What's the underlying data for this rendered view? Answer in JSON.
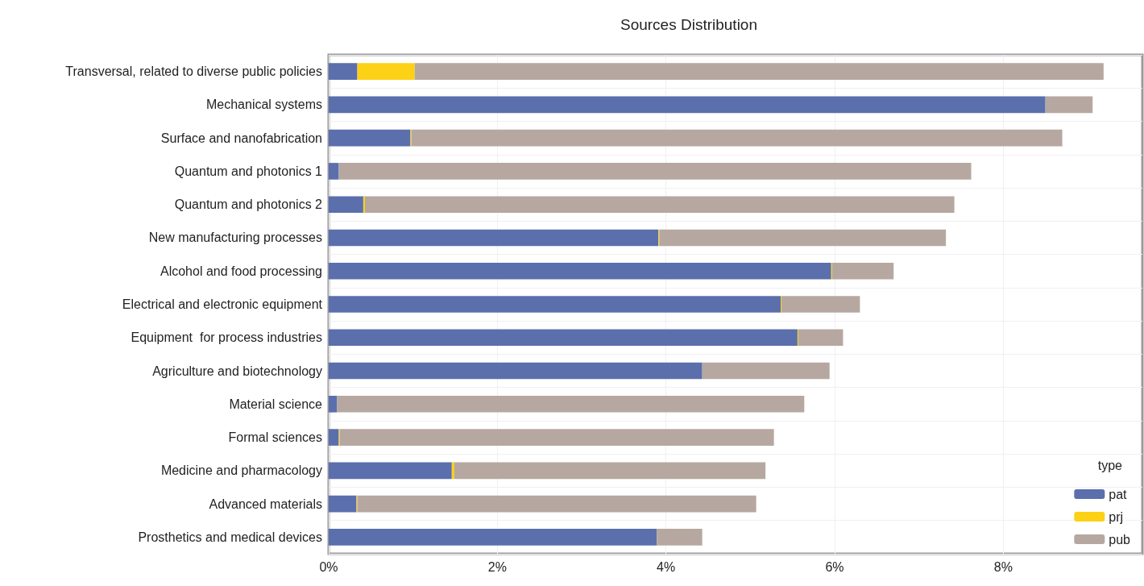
{
  "chart_data": {
    "type": "bar",
    "orientation": "horizontal",
    "stacked": true,
    "title": "Sources Distribution",
    "legend_title": "type",
    "legend": "bottom right",
    "grid": true,
    "categories": [
      "Transversal, related to diverse public policies",
      "Mechanical systems",
      "Surface and nanofabrication",
      "Quantum and photonics 1",
      "Quantum and photonics 2",
      "New manufacturing processes",
      "Alcohol and food processing",
      "Electrical and electronic equipment",
      "Equipment  for process industries",
      "Agriculture and biotechnology",
      "Material science",
      "Formal sciences",
      "Medicine and pharmacology",
      "Advanced materials",
      "Prosthetics and medical devices"
    ],
    "series": [
      {
        "name": "pat",
        "color": "#5b6fad",
        "values": [
          0.34,
          8.5,
          0.97,
          0.12,
          0.41,
          3.91,
          5.96,
          5.36,
          5.56,
          4.43,
          0.1,
          0.12,
          1.46,
          0.33,
          3.89
        ]
      },
      {
        "name": "prj",
        "color": "#fcd116",
        "values": [
          0.68,
          0,
          0.01,
          0,
          0.02,
          0.01,
          0.01,
          0.01,
          0.01,
          0,
          0,
          0.01,
          0.03,
          0.01,
          0
        ]
      },
      {
        "name": "pub",
        "color": "#b6a8a0",
        "values": [
          8.17,
          0.56,
          7.72,
          7.5,
          6.99,
          3.4,
          0.73,
          0.93,
          0.53,
          1.51,
          5.54,
          5.15,
          3.69,
          4.73,
          0.54
        ]
      }
    ],
    "xlim": [
      0,
      9.65
    ],
    "xticks": [
      {
        "value": 0,
        "label": "0%"
      },
      {
        "value": 2,
        "label": "2%"
      },
      {
        "value": 4,
        "label": "4%"
      },
      {
        "value": 6,
        "label": "6%"
      },
      {
        "value": 8,
        "label": "8%"
      }
    ]
  }
}
